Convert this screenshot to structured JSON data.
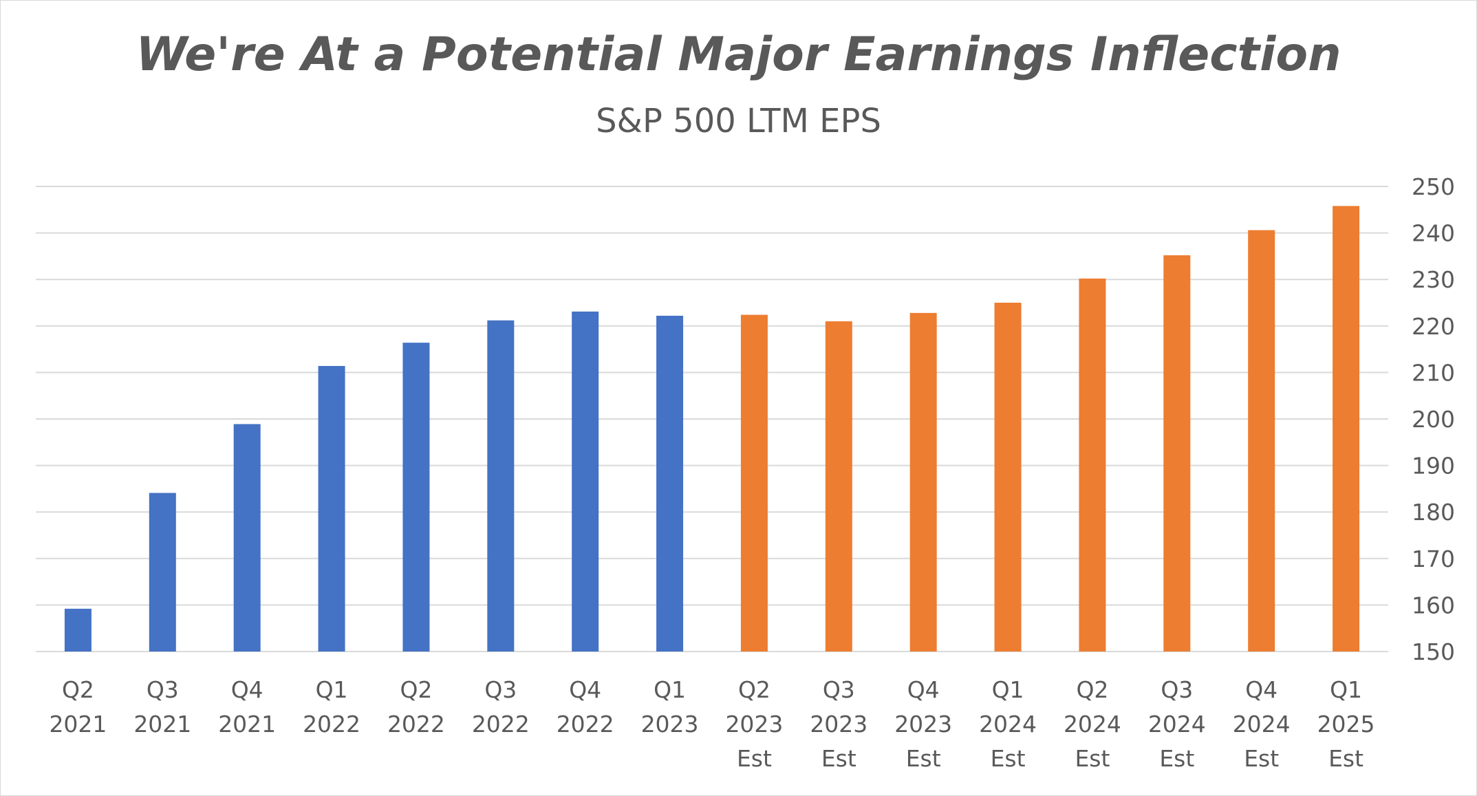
{
  "chart_data": {
    "type": "bar",
    "title": "We're At a Potential Major Earnings Inflection",
    "subtitle": "S&P 500 LTM EPS",
    "xlabel": "",
    "ylabel": "",
    "ylim": [
      150,
      250
    ],
    "yticks": [
      150,
      160,
      170,
      180,
      190,
      200,
      210,
      220,
      230,
      240,
      250
    ],
    "y_axis_position": "right",
    "grid": true,
    "legend": "none",
    "categories": [
      [
        "Q2",
        "2021"
      ],
      [
        "Q3",
        "2021"
      ],
      [
        "Q4",
        "2021"
      ],
      [
        "Q1",
        "2022"
      ],
      [
        "Q2",
        "2022"
      ],
      [
        "Q3",
        "2022"
      ],
      [
        "Q4",
        "2022"
      ],
      [
        "Q1",
        "2023"
      ],
      [
        "Q2",
        "2023",
        "Est"
      ],
      [
        "Q3",
        "2023",
        "Est"
      ],
      [
        "Q4",
        "2023",
        "Est"
      ],
      [
        "Q1",
        "2024",
        "Est"
      ],
      [
        "Q2",
        "2024",
        "Est"
      ],
      [
        "Q3",
        "2024",
        "Est"
      ],
      [
        "Q4",
        "2024",
        "Est"
      ],
      [
        "Q1",
        "2025",
        "Est"
      ]
    ],
    "values": [
      159.2,
      184.1,
      198.9,
      211.4,
      216.4,
      221.2,
      223.1,
      222.2,
      222.4,
      221.0,
      222.8,
      225.0,
      230.2,
      235.2,
      240.6,
      245.8
    ],
    "series_kind": [
      "actual",
      "actual",
      "actual",
      "actual",
      "actual",
      "actual",
      "actual",
      "actual",
      "estimate",
      "estimate",
      "estimate",
      "estimate",
      "estimate",
      "estimate",
      "estimate",
      "estimate"
    ],
    "colors": {
      "actual": "#4472c4",
      "estimate": "#ed7d31",
      "grid": "#d9d9d9",
      "text": "#595959"
    }
  }
}
